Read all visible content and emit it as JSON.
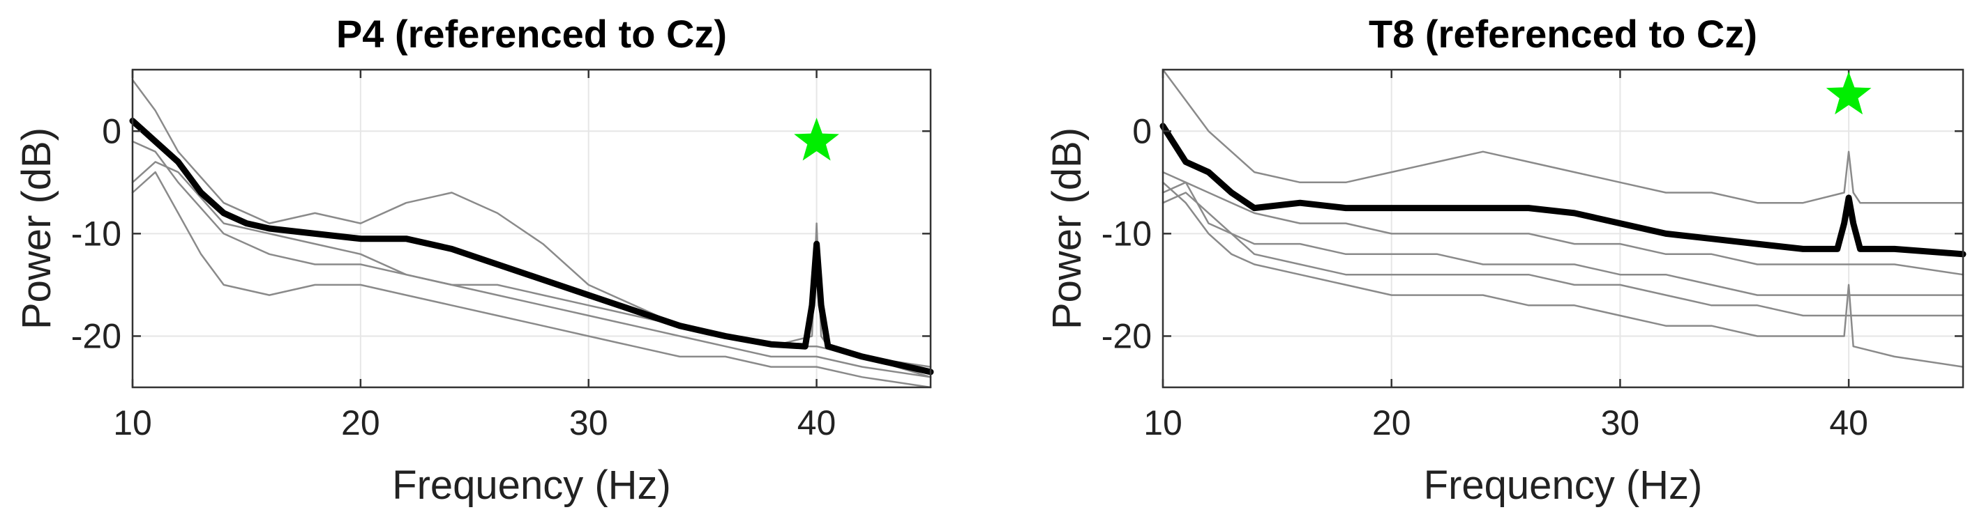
{
  "chart_data": [
    {
      "type": "line",
      "title": "P4 (referenced to Cz)",
      "xlabel": "Frequency (Hz)",
      "ylabel": "Power (dB)",
      "xlim": [
        10,
        45
      ],
      "ylim": [
        -25,
        6
      ],
      "xticks": [
        "10",
        "20",
        "30",
        "40"
      ],
      "yticks": [
        "0",
        "-10",
        "-20"
      ],
      "grid": true,
      "marker": {
        "shape": "star",
        "x": 40,
        "y": -1,
        "color": "#00ee00"
      },
      "mean_color": "#000000",
      "trace_color": "#8a8a8a",
      "series": [
        {
          "role": "mean",
          "x": [
            10,
            11,
            12,
            13,
            14,
            15,
            16,
            18,
            20,
            22,
            24,
            26,
            28,
            30,
            32,
            34,
            36,
            38,
            39.5,
            39.8,
            40,
            40.2,
            40.5,
            42,
            45
          ],
          "values": [
            1,
            -1,
            -3,
            -6,
            -8,
            -9,
            -9.5,
            -10,
            -10.5,
            -10.5,
            -11.5,
            -13,
            -14.5,
            -16,
            -17.5,
            -19,
            -20,
            -20.8,
            -21,
            -17,
            -11,
            -17,
            -21,
            -22,
            -23.5
          ]
        },
        {
          "role": "trial",
          "x": [
            10,
            11,
            12,
            14,
            16,
            18,
            20,
            22,
            24,
            26,
            28,
            30,
            32,
            34,
            36,
            38,
            39.8,
            40,
            40.2,
            40.5,
            42,
            45
          ],
          "values": [
            5,
            2,
            -2,
            -7,
            -9,
            -8,
            -9,
            -7,
            -6,
            -8,
            -11,
            -15,
            -17,
            -19,
            -20,
            -21,
            -20,
            -9,
            -20,
            -21,
            -22,
            -24
          ]
        },
        {
          "role": "trial",
          "x": [
            10,
            11,
            12,
            14,
            16,
            18,
            20,
            22,
            24,
            26,
            28,
            30,
            32,
            34,
            36,
            38,
            40,
            42,
            45
          ],
          "values": [
            -5,
            -3,
            -4,
            -9,
            -10,
            -11,
            -12,
            -14,
            -15,
            -15,
            -16,
            -17,
            -18,
            -19,
            -20,
            -21,
            -21,
            -22,
            -23
          ]
        },
        {
          "role": "trial",
          "x": [
            10,
            11,
            12,
            14,
            16,
            18,
            20,
            22,
            24,
            26,
            28,
            30,
            32,
            34,
            36,
            38,
            40,
            42,
            45
          ],
          "values": [
            -1,
            -2,
            -5,
            -10,
            -12,
            -13,
            -13,
            -14,
            -15,
            -16,
            -17,
            -18,
            -19,
            -20,
            -21,
            -22,
            -22,
            -23,
            -24
          ]
        },
        {
          "role": "trial",
          "x": [
            10,
            11,
            12,
            13,
            14,
            16,
            18,
            20,
            22,
            24,
            26,
            28,
            30,
            32,
            34,
            36,
            38,
            40,
            42,
            45
          ],
          "values": [
            -6,
            -4,
            -8,
            -12,
            -15,
            -16,
            -15,
            -15,
            -16,
            -17,
            -18,
            -19,
            -20,
            -21,
            -22,
            -22,
            -23,
            -23,
            -24,
            -25
          ]
        }
      ]
    },
    {
      "type": "line",
      "title": "T8 (referenced to Cz)",
      "xlabel": "Frequency (Hz)",
      "ylabel": "Power (dB)",
      "xlim": [
        10,
        45
      ],
      "ylim": [
        -25,
        6
      ],
      "xticks": [
        "10",
        "20",
        "30",
        "40"
      ],
      "yticks": [
        "0",
        "-10",
        "-20"
      ],
      "grid": true,
      "marker": {
        "shape": "star",
        "x": 40,
        "y": 3.5,
        "color": "#00ee00"
      },
      "mean_color": "#000000",
      "trace_color": "#8a8a8a",
      "series": [
        {
          "role": "mean",
          "x": [
            10,
            11,
            12,
            13,
            14,
            16,
            18,
            20,
            22,
            24,
            26,
            28,
            30,
            32,
            34,
            36,
            38,
            39.5,
            39.8,
            40,
            40.2,
            40.5,
            42,
            45
          ],
          "values": [
            0.5,
            -3,
            -4,
            -6,
            -7.5,
            -7,
            -7.5,
            -7.5,
            -7.5,
            -7.5,
            -7.5,
            -8,
            -9,
            -10,
            -10.5,
            -11,
            -11.5,
            -11.5,
            -9,
            -6.5,
            -9,
            -11.5,
            -11.5,
            -12
          ]
        },
        {
          "role": "trial",
          "x": [
            10,
            11,
            12,
            14,
            16,
            18,
            20,
            22,
            24,
            26,
            28,
            30,
            32,
            34,
            36,
            38,
            39.8,
            40,
            40.2,
            40.5,
            42,
            45
          ],
          "values": [
            6,
            3,
            0,
            -4,
            -5,
            -5,
            -4,
            -3,
            -2,
            -3,
            -4,
            -5,
            -6,
            -6,
            -7,
            -7,
            -6,
            -2,
            -6,
            -7,
            -7,
            -7
          ]
        },
        {
          "role": "trial",
          "x": [
            10,
            11,
            12,
            14,
            16,
            18,
            20,
            22,
            24,
            26,
            28,
            30,
            32,
            34,
            36,
            38,
            40,
            42,
            45
          ],
          "values": [
            -4,
            -5,
            -6,
            -8,
            -9,
            -9,
            -10,
            -10,
            -10,
            -10,
            -11,
            -11,
            -12,
            -12,
            -13,
            -13,
            -13,
            -13,
            -14
          ]
        },
        {
          "role": "trial",
          "x": [
            10,
            11,
            12,
            14,
            16,
            18,
            20,
            22,
            24,
            26,
            28,
            30,
            32,
            34,
            36,
            38,
            40,
            42,
            45
          ],
          "values": [
            -6,
            -5,
            -9,
            -11,
            -11,
            -12,
            -12,
            -12,
            -13,
            -13,
            -13,
            -14,
            -14,
            -15,
            -16,
            -16,
            -16,
            -16,
            -16
          ]
        },
        {
          "role": "trial",
          "x": [
            10,
            11,
            12,
            14,
            16,
            18,
            20,
            22,
            24,
            26,
            28,
            30,
            32,
            34,
            36,
            38,
            40,
            42,
            45
          ],
          "values": [
            -7,
            -6,
            -8,
            -12,
            -13,
            -14,
            -14,
            -14,
            -14,
            -14,
            -15,
            -15,
            -16,
            -17,
            -17,
            -18,
            -18,
            -18,
            -18
          ]
        },
        {
          "role": "trial",
          "x": [
            10,
            11,
            12,
            13,
            14,
            16,
            18,
            20,
            22,
            24,
            26,
            28,
            30,
            32,
            34,
            36,
            38,
            39.8,
            40,
            40.2,
            42,
            45
          ],
          "values": [
            -5,
            -7,
            -10,
            -12,
            -13,
            -14,
            -15,
            -16,
            -16,
            -16,
            -17,
            -17,
            -18,
            -19,
            -19,
            -20,
            -20,
            -20,
            -15,
            -21,
            -22,
            -23
          ]
        }
      ]
    }
  ]
}
